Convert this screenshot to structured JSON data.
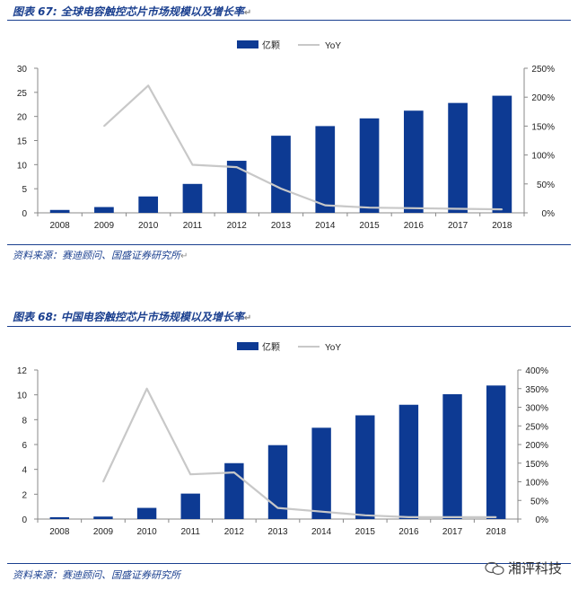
{
  "figures": [
    {
      "title": "图表 67:  全球电容触控芯片市场规模以及增长率",
      "source": "资料来源：赛迪顾问、国盛证券研究所",
      "return_mark": "↵"
    },
    {
      "title": "图表 68:  中国电容触控芯片市场规模以及增长率",
      "source": "资料来源：赛迪顾问、国盛证券研究所",
      "return_mark": "↵"
    }
  ],
  "watermark": {
    "text": "湘评科技",
    "icon": "wechat-icon"
  },
  "colors": {
    "bar": "#0d3a93",
    "line": "#c8c8c8",
    "title": "#1a3f8f"
  },
  "chart_data": [
    {
      "type": "bar",
      "categories": [
        "2008",
        "2009",
        "2010",
        "2011",
        "2012",
        "2013",
        "2014",
        "2015",
        "2016",
        "2017",
        "2018"
      ],
      "series": [
        {
          "name": "亿颗",
          "type": "bar",
          "axis": "left",
          "values": [
            0.6,
            1.2,
            3.4,
            6.0,
            10.8,
            16.0,
            18.0,
            19.6,
            21.2,
            22.8,
            24.3
          ]
        },
        {
          "name": "YoY",
          "type": "line",
          "axis": "right",
          "values": [
            null,
            150,
            220,
            83,
            79,
            42,
            13,
            9,
            8,
            7,
            6
          ]
        }
      ],
      "ylim": [
        0,
        30
      ],
      "yticks": [
        "0",
        "5",
        "10",
        "15",
        "20",
        "25",
        "30"
      ],
      "y2lim": [
        0,
        250
      ],
      "y2ticks": [
        "0%",
        "50%",
        "100%",
        "150%",
        "200%",
        "250%"
      ],
      "legend_position": "top-center",
      "grid": false
    },
    {
      "type": "bar",
      "categories": [
        "2008",
        "2009",
        "2010",
        "2011",
        "2012",
        "2013",
        "2014",
        "2015",
        "2016",
        "2017",
        "2018"
      ],
      "series": [
        {
          "name": "亿颗",
          "type": "bar",
          "axis": "left",
          "values": [
            0.15,
            0.2,
            0.9,
            2.05,
            4.5,
            5.95,
            7.35,
            8.35,
            9.2,
            10.05,
            10.75
          ]
        },
        {
          "name": "YoY",
          "type": "line",
          "axis": "right",
          "values": [
            null,
            100,
            350,
            120,
            125,
            30,
            20,
            10,
            5,
            5,
            5
          ]
        }
      ],
      "ylim": [
        0,
        12
      ],
      "yticks": [
        "0",
        "2",
        "4",
        "6",
        "8",
        "10",
        "12"
      ],
      "y2lim": [
        0,
        400
      ],
      "y2ticks": [
        "0%",
        "50%",
        "100%",
        "150%",
        "200%",
        "250%",
        "300%",
        "350%",
        "400%"
      ],
      "legend_position": "top-center",
      "grid": false
    }
  ]
}
